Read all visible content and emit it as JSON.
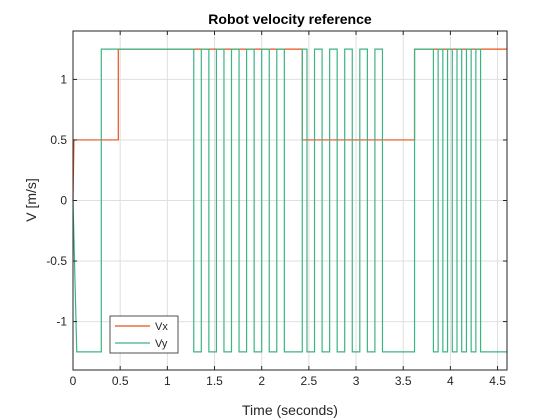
{
  "chart_data": {
    "type": "line",
    "title": "Robot velocity reference",
    "xlabel": "Time (seconds)",
    "ylabel": "V [m/s]",
    "xlim": [
      0,
      4.6
    ],
    "ylim": [
      -1.4,
      1.4
    ],
    "xticks": [
      0,
      0.5,
      1,
      1.5,
      2,
      2.5,
      3,
      3.5,
      4,
      4.5
    ],
    "xtick_labels": [
      "0",
      "0.5",
      "1",
      "1.5",
      "2",
      "2.5",
      "3",
      "3.5",
      "4",
      "4.5"
    ],
    "yticks": [
      -1,
      -0.5,
      0,
      0.5,
      1
    ],
    "ytick_labels": [
      "-1",
      "-0.5",
      "0",
      "0.5",
      "1"
    ],
    "grid": true,
    "legend_position": "bottom-left",
    "series": [
      {
        "name": "Vx",
        "color": "#e8501b",
        "x": [
          0,
          0.01,
          0.48,
          0.48,
          2.43,
          2.43,
          3.62,
          3.62,
          4.6
        ],
        "y": [
          0,
          0.5,
          0.5,
          1.25,
          1.25,
          0.5,
          0.5,
          1.25,
          1.25
        ]
      },
      {
        "name": "Vy",
        "color": "#3cb482",
        "x": [
          0,
          0.04,
          0.3,
          0.3,
          1.28,
          1.28,
          1.36,
          1.36,
          1.44,
          1.44,
          1.52,
          1.52,
          1.6,
          1.6,
          1.68,
          1.68,
          1.76,
          1.76,
          1.84,
          1.84,
          1.92,
          1.92,
          2.0,
          2.0,
          2.08,
          2.08,
          2.16,
          2.16,
          2.24,
          2.24,
          2.43,
          2.43,
          2.48,
          2.48,
          2.56,
          2.56,
          2.64,
          2.64,
          2.72,
          2.72,
          2.8,
          2.8,
          2.88,
          2.88,
          2.96,
          2.96,
          3.04,
          3.04,
          3.12,
          3.12,
          3.2,
          3.2,
          3.28,
          3.28,
          3.34,
          3.34,
          3.62,
          3.62,
          3.82,
          3.82,
          3.87,
          3.87,
          3.92,
          3.92,
          3.97,
          3.97,
          4.02,
          4.02,
          4.07,
          4.07,
          4.12,
          4.12,
          4.17,
          4.17,
          4.22,
          4.22,
          4.27,
          4.27,
          4.32,
          4.32,
          4.6
        ],
        "y": [
          0,
          -1.25,
          -1.25,
          1.25,
          1.25,
          -1.25,
          -1.25,
          1.25,
          1.25,
          -1.25,
          -1.25,
          1.25,
          1.25,
          -1.25,
          -1.25,
          1.25,
          1.25,
          -1.25,
          -1.25,
          1.25,
          1.25,
          -1.25,
          -1.25,
          1.25,
          1.25,
          -1.25,
          -1.25,
          1.25,
          1.25,
          -1.25,
          -1.25,
          1.25,
          1.25,
          -1.25,
          -1.25,
          1.25,
          1.25,
          -1.25,
          -1.25,
          1.25,
          1.25,
          -1.25,
          -1.25,
          1.25,
          1.25,
          -1.25,
          -1.25,
          1.25,
          1.25,
          -1.25,
          -1.25,
          1.25,
          1.25,
          -1.25,
          -1.25,
          -1.25,
          -1.25,
          1.25,
          1.25,
          -1.25,
          -1.25,
          1.25,
          1.25,
          -1.25,
          -1.25,
          1.25,
          1.25,
          -1.25,
          -1.25,
          1.25,
          1.25,
          -1.25,
          -1.25,
          1.25,
          1.25,
          -1.25,
          -1.25,
          1.25,
          1.25,
          -1.25,
          -1.25
        ]
      }
    ]
  }
}
